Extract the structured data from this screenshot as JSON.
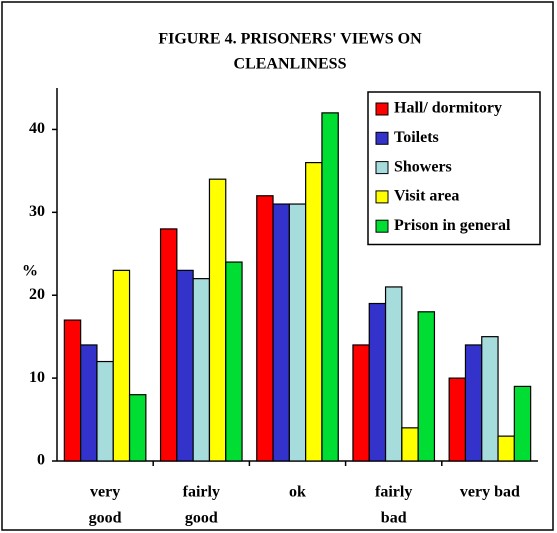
{
  "chart_data": {
    "type": "bar",
    "title": [
      "FIGURE  4. PRISONERS' VIEWS ON",
      "CLEANLINESS"
    ],
    "y_label": "%",
    "categories": [
      [
        "very",
        "good"
      ],
      [
        "fairly",
        "good"
      ],
      [
        "ok"
      ],
      [
        "fairly",
        "bad"
      ],
      [
        "very bad"
      ]
    ],
    "series": [
      {
        "name": "Hall/ dormitory",
        "color": "#ff0000",
        "values": [
          17,
          28,
          32,
          14,
          10
        ]
      },
      {
        "name": "Toilets",
        "color": "#3333cc",
        "values": [
          14,
          23,
          31,
          19,
          14
        ]
      },
      {
        "name": "Showers",
        "color": "#a6dcdc",
        "values": [
          12,
          22,
          31,
          21,
          15
        ]
      },
      {
        "name": "Visit area",
        "color": "#ffff00",
        "values": [
          23,
          34,
          36,
          4,
          3
        ]
      },
      {
        "name": "Prison in general",
        "color": "#00dd33",
        "values": [
          8,
          24,
          42,
          18,
          9
        ]
      }
    ],
    "ylim": [
      0,
      45
    ],
    "yticks": [
      0,
      10,
      20,
      30,
      40
    ],
    "legend": "upper right"
  }
}
